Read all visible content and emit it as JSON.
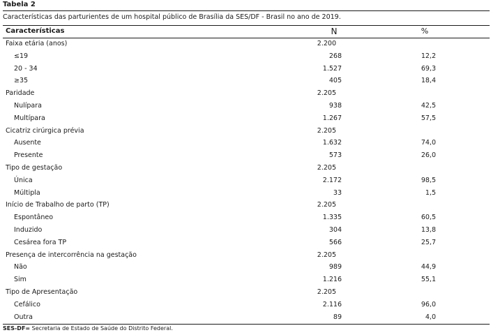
{
  "table_label": "Tabela 2",
  "caption": "Características das parturientes de um hospital público de Brasília da SES/DF - Brasil no ano de 2019.",
  "columns": [
    "Características",
    "N",
    "%"
  ],
  "rows": [
    {
      "label": "Faixa etária (anos)",
      "n": "2.200",
      "pct": "",
      "kind": "cat"
    },
    {
      "label": "≤19",
      "n": "268",
      "pct": "12,2",
      "kind": "sub"
    },
    {
      "label": "20 - 34",
      "n": "1.527",
      "pct": "69,3",
      "kind": "sub"
    },
    {
      "label": "≥35",
      "n": "405",
      "pct": "18,4",
      "kind": "sub"
    },
    {
      "label": "Paridade",
      "n": "2.205",
      "pct": "",
      "kind": "cat"
    },
    {
      "label": "Nulípara",
      "n": "938",
      "pct": "42,5",
      "kind": "sub"
    },
    {
      "label": "Multípara",
      "n": "1.267",
      "pct": "57,5",
      "kind": "sub"
    },
    {
      "label": "Cicatriz cirúrgica prévia",
      "n": "2.205",
      "pct": "",
      "kind": "cat"
    },
    {
      "label": "Ausente",
      "n": "1.632",
      "pct": "74,0",
      "kind": "sub"
    },
    {
      "label": "Presente",
      "n": "573",
      "pct": "26,0",
      "kind": "sub"
    },
    {
      "label": "Tipo de gestação",
      "n": "2.205",
      "pct": "",
      "kind": "cat"
    },
    {
      "label": "Única",
      "n": "2.172",
      "pct": "98,5",
      "kind": "sub"
    },
    {
      "label": "Múltipla",
      "n": "33",
      "pct": "1,5",
      "kind": "sub"
    },
    {
      "label": "Início de Trabalho de parto (TP)",
      "n": "2.205",
      "pct": "",
      "kind": "cat"
    },
    {
      "label": "Espontâneo",
      "n": "1.335",
      "pct": "60,5",
      "kind": "sub"
    },
    {
      "label": "Induzido",
      "n": "304",
      "pct": "13,8",
      "kind": "sub"
    },
    {
      "label": "Cesárea fora TP",
      "n": "566",
      "pct": "25,7",
      "kind": "sub"
    },
    {
      "label": "Presença de intercorrência na gestação",
      "n": "2.205",
      "pct": "",
      "kind": "cat"
    },
    {
      "label": "Não",
      "n": "989",
      "pct": "44,9",
      "kind": "sub"
    },
    {
      "label": "Sim",
      "n": "1.216",
      "pct": "55,1",
      "kind": "sub"
    },
    {
      "label": "Tipo de Apresentação",
      "n": "2.205",
      "pct": "",
      "kind": "cat"
    },
    {
      "label": "Cefálico",
      "n": "2.116",
      "pct": "96,0",
      "kind": "sub"
    },
    {
      "label": "Outra",
      "n": "89",
      "pct": "4,0",
      "kind": "sub"
    }
  ],
  "footnote": {
    "abbr": "SES-DF=",
    "text": " Secretaria de Estado de Saúde do Distrito Federal."
  }
}
